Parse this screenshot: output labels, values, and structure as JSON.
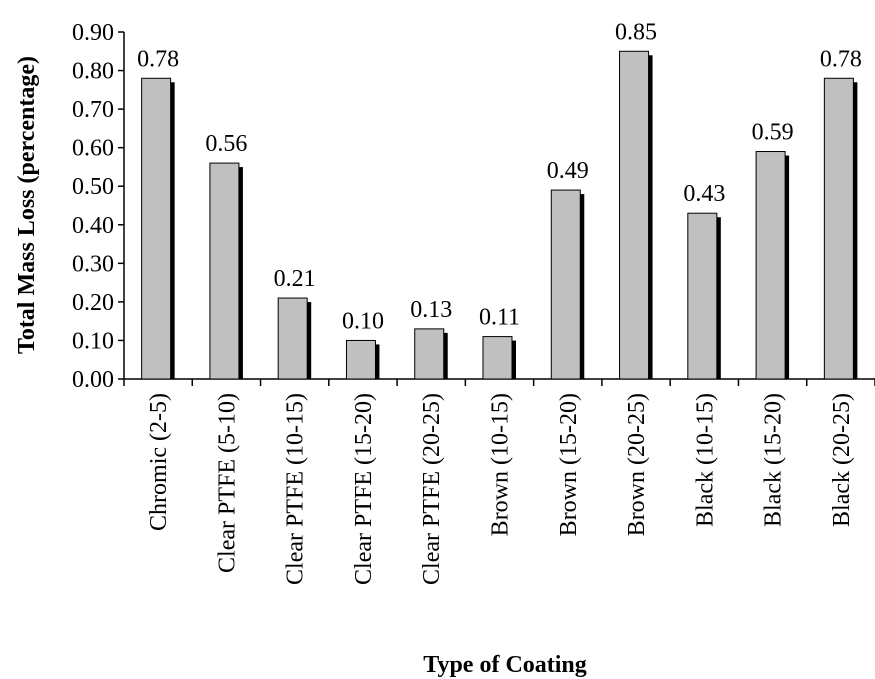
{
  "chart_data": {
    "type": "bar",
    "title": "",
    "xlabel": "Type of Coating",
    "ylabel": "Total Mass Loss (percentage)",
    "ylim": [
      0,
      0.9
    ],
    "y_ticks": [
      "0.00",
      "0.10",
      "0.20",
      "0.30",
      "0.40",
      "0.50",
      "0.60",
      "0.70",
      "0.80",
      "0.90"
    ],
    "categories": [
      "Chromic (2-5)",
      "Clear PTFE (5-10)",
      "Clear PTFE (10-15)",
      "Clear PTFE (15-20)",
      "Clear PTFE (20-25)",
      "Brown (10-15)",
      "Brown (15-20)",
      "Brown (20-25)",
      "Black (10-15)",
      "Black (15-20)",
      "Black (20-25)"
    ],
    "values": [
      0.78,
      0.56,
      0.21,
      0.1,
      0.13,
      0.11,
      0.49,
      0.85,
      0.43,
      0.59,
      0.78
    ],
    "value_labels": [
      "0.78",
      "0.56",
      "0.21",
      "0.10",
      "0.13",
      "0.11",
      "0.49",
      "0.85",
      "0.43",
      "0.59",
      "0.78"
    ],
    "grid": false,
    "legend": "none",
    "colors": {
      "bar_fill": "#c0c0c0",
      "bar_shadow": "#000000",
      "axis": "#000000"
    }
  }
}
